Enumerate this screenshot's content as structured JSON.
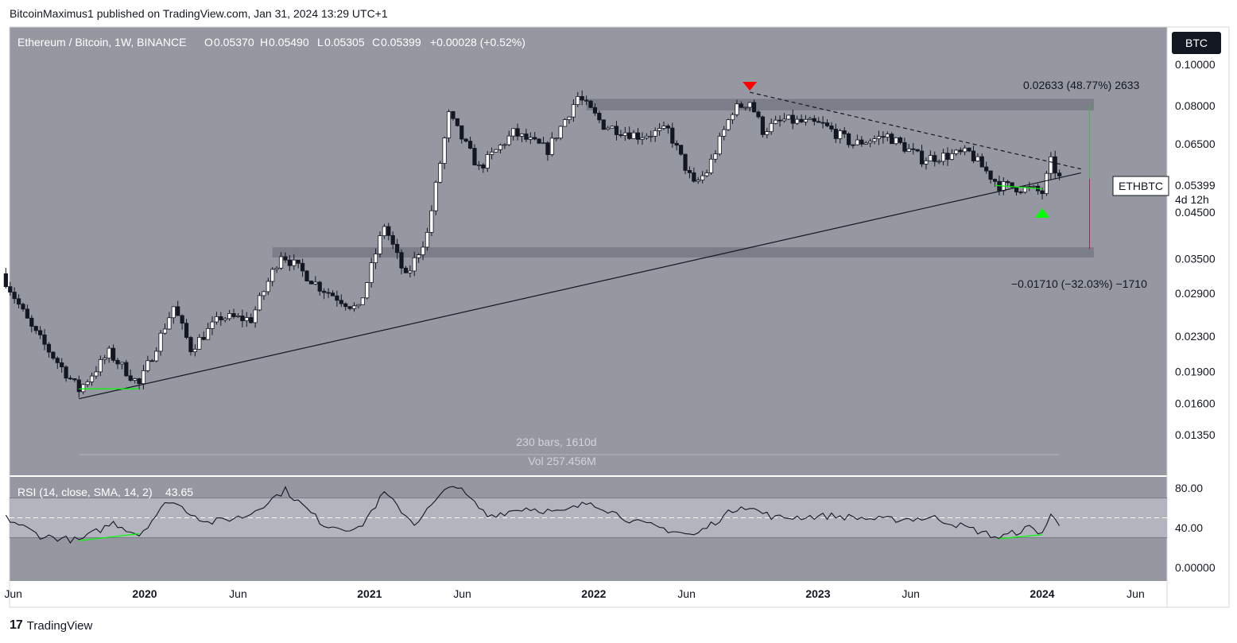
{
  "header": {
    "author": "BitcoinMaximus1",
    "published_text": "published on TradingView.com, Jan 31, 2024 13:29 UTC+1"
  },
  "footer": {
    "brand": "TradingView",
    "logo": "17"
  },
  "chart_data": {
    "type": "candlestick",
    "title": "Ethereum / Bitcoin, 1W, BINANCE",
    "ohlc": {
      "o_label": "O",
      "o": "0.05370",
      "h_label": "H",
      "h": "0.05490",
      "l_label": "L",
      "l": "0.05305",
      "c_label": "C",
      "c": "0.05399",
      "change": "+0.00028 (+0.52%)"
    },
    "currency_badge": "BTC",
    "price_axis_ticks": [
      "0.10000",
      "0.08000",
      "0.06500",
      "0.05399",
      "0.04500",
      "0.03500",
      "0.02900",
      "0.02300",
      "0.01900",
      "0.01600",
      "0.01350"
    ],
    "price_tick_values": [
      0.1,
      0.08,
      0.065,
      0.045,
      0.035,
      0.029,
      0.023,
      0.019,
      0.016,
      0.0135
    ],
    "price_label": {
      "symbol": "ETHBTC",
      "value": "0.05399",
      "countdown": "4d 12h"
    },
    "time_axis_ticks": [
      "Jun",
      "2020",
      "Jun",
      "2021",
      "Jun",
      "2022",
      "Jun",
      "2023",
      "Jun",
      "2024",
      "Jun"
    ],
    "measure_up": "0.02633 (48.77%) 2633",
    "measure_down": "−0.01710 (−32.03%) −1710",
    "date_range_label": "230 bars, 1610d",
    "volume_label": "Vol 257.456M",
    "price_anchors": [
      {
        "date": "2019-05-20",
        "price": 0.031
      },
      {
        "date": "2019-07-01",
        "price": 0.024
      },
      {
        "date": "2019-09-16",
        "price": 0.0172
      },
      {
        "date": "2019-11-04",
        "price": 0.021
      },
      {
        "date": "2019-12-23",
        "price": 0.0177
      },
      {
        "date": "2020-02-17",
        "price": 0.027
      },
      {
        "date": "2020-03-16",
        "price": 0.0215
      },
      {
        "date": "2020-05-04",
        "price": 0.0255
      },
      {
        "date": "2020-06-22",
        "price": 0.0252
      },
      {
        "date": "2020-08-10",
        "price": 0.036
      },
      {
        "date": "2020-10-12",
        "price": 0.03
      },
      {
        "date": "2020-12-14",
        "price": 0.0265
      },
      {
        "date": "2021-01-25",
        "price": 0.042
      },
      {
        "date": "2021-03-01",
        "price": 0.0315
      },
      {
        "date": "2021-04-05",
        "price": 0.04
      },
      {
        "date": "2021-05-10",
        "price": 0.076
      },
      {
        "date": "2021-06-28",
        "price": 0.057
      },
      {
        "date": "2021-08-23",
        "price": 0.069
      },
      {
        "date": "2021-10-18",
        "price": 0.063
      },
      {
        "date": "2021-12-06",
        "price": 0.084
      },
      {
        "date": "2022-01-17",
        "price": 0.072
      },
      {
        "date": "2022-03-14",
        "price": 0.068
      },
      {
        "date": "2022-05-02",
        "price": 0.07
      },
      {
        "date": "2022-06-13",
        "price": 0.052
      },
      {
        "date": "2022-07-04",
        "price": 0.056
      },
      {
        "date": "2022-08-15",
        "price": 0.078
      },
      {
        "date": "2022-09-12",
        "price": 0.082
      },
      {
        "date": "2022-10-03",
        "price": 0.07
      },
      {
        "date": "2022-11-07",
        "price": 0.074
      },
      {
        "date": "2023-01-09",
        "price": 0.072
      },
      {
        "date": "2023-02-27",
        "price": 0.065
      },
      {
        "date": "2023-04-24",
        "price": 0.068
      },
      {
        "date": "2023-06-19",
        "price": 0.06
      },
      {
        "date": "2023-09-04",
        "price": 0.062
      },
      {
        "date": "2023-10-23",
        "price": 0.052
      },
      {
        "date": "2023-12-11",
        "price": 0.051
      },
      {
        "date": "2024-01-01",
        "price": 0.05
      },
      {
        "date": "2024-01-15",
        "price": 0.059
      },
      {
        "date": "2024-01-29",
        "price": 0.054
      }
    ],
    "support_zones": [
      {
        "name": "resistance-zone",
        "from": 0.078,
        "to": 0.083
      },
      {
        "name": "support-zone",
        "from": 0.0352,
        "to": 0.0372
      }
    ],
    "trendlines": [
      {
        "name": "ascending-support",
        "from": {
          "date": "2019-09-16",
          "price": 0.0164
        },
        "to": {
          "date": "2024-03-04",
          "price": 0.0556
        },
        "style": "solid"
      },
      {
        "name": "descending-resistance",
        "from": {
          "date": "2022-09-12",
          "price": 0.086
        },
        "to": {
          "date": "2024-03-04",
          "price": 0.0568
        },
        "style": "dashed"
      }
    ],
    "markers": [
      {
        "name": "top-triangle",
        "date": "2022-09-12",
        "type": "down",
        "color": "#ff0000"
      },
      {
        "name": "bottom-triangle",
        "date": "2024-01-01",
        "type": "up",
        "color": "#00ff00"
      }
    ],
    "divergence_lines": [
      {
        "from": {
          "date": "2019-09-16",
          "price": 0.0173
        },
        "to": {
          "date": "2019-12-23",
          "price": 0.0173
        }
      },
      {
        "from": {
          "date": "2023-10-16",
          "price": 0.052
        },
        "to": {
          "date": "2024-01-01",
          "price": 0.051
        }
      }
    ],
    "rsi": {
      "label": "RSI (14, close, SMA, 14, 2)",
      "value": "43.65",
      "ticks": [
        "80.00",
        "40.00",
        "0.00000"
      ],
      "tick_values": [
        80,
        40,
        0
      ],
      "band": [
        30,
        70
      ],
      "midline": 50,
      "anchors": [
        {
          "date": "2019-05-20",
          "v": 50
        },
        {
          "date": "2019-07-15",
          "v": 32
        },
        {
          "date": "2019-09-16",
          "v": 27
        },
        {
          "date": "2019-11-11",
          "v": 45
        },
        {
          "date": "2019-12-23",
          "v": 33
        },
        {
          "date": "2020-02-10",
          "v": 68
        },
        {
          "date": "2020-04-13",
          "v": 45
        },
        {
          "date": "2020-06-15",
          "v": 52
        },
        {
          "date": "2020-08-17",
          "v": 78
        },
        {
          "date": "2020-10-19",
          "v": 43
        },
        {
          "date": "2020-12-14",
          "v": 38
        },
        {
          "date": "2021-01-25",
          "v": 75
        },
        {
          "date": "2021-03-15",
          "v": 44
        },
        {
          "date": "2021-05-17",
          "v": 85
        },
        {
          "date": "2021-07-12",
          "v": 52
        },
        {
          "date": "2021-09-13",
          "v": 60
        },
        {
          "date": "2021-11-08",
          "v": 55
        },
        {
          "date": "2021-12-27",
          "v": 66
        },
        {
          "date": "2022-03-07",
          "v": 46
        },
        {
          "date": "2022-06-13",
          "v": 32
        },
        {
          "date": "2022-08-29",
          "v": 63
        },
        {
          "date": "2022-10-24",
          "v": 50
        },
        {
          "date": "2023-01-23",
          "v": 52
        },
        {
          "date": "2023-04-17",
          "v": 48
        },
        {
          "date": "2023-07-10",
          "v": 50
        },
        {
          "date": "2023-10-23",
          "v": 30
        },
        {
          "date": "2023-12-11",
          "v": 40
        },
        {
          "date": "2024-01-01",
          "v": 35
        },
        {
          "date": "2024-01-15",
          "v": 52
        },
        {
          "date": "2024-01-29",
          "v": 43.65
        }
      ],
      "divergences": [
        {
          "from": {
            "date": "2019-09-16",
            "v": 27
          },
          "to": {
            "date": "2019-12-23",
            "v": 34
          }
        },
        {
          "from": {
            "date": "2023-10-23",
            "v": 29
          },
          "to": {
            "date": "2024-01-01",
            "v": 33
          }
        }
      ]
    },
    "colors": {
      "background": "#9598a1",
      "rsi_band": "#b2b5be",
      "zone": "#787b86",
      "up_candle": "#ffffff",
      "down_candle": "#131722",
      "trend": "#131722",
      "green": "#00ff00",
      "red": "#ff0000",
      "axis_text": "#131722",
      "badge_bg": "#131722"
    }
  }
}
